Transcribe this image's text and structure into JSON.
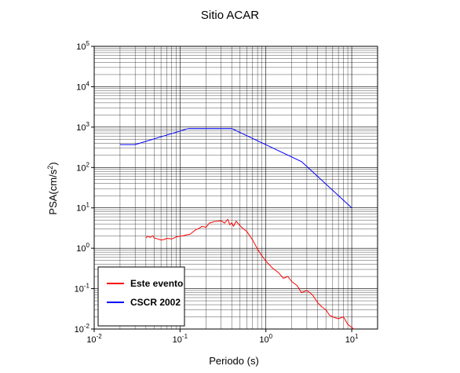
{
  "chart_data": {
    "type": "line",
    "title": "Sitio ACAR",
    "xlabel": "Periodo (s)",
    "ylabel_main": "PSA(cm/s",
    "ylabel_sup": "2",
    "ylabel_close": ")",
    "x_scale": "log",
    "y_scale": "log",
    "xlim": [
      0.01,
      20
    ],
    "ylim": [
      0.01,
      100000
    ],
    "grid": true,
    "legend_position": "bottom-left",
    "x_ticks": [
      {
        "value": 0.01,
        "base": "10",
        "exp": "-2"
      },
      {
        "value": 0.1,
        "base": "10",
        "exp": "-1"
      },
      {
        "value": 1,
        "base": "10",
        "exp": "0"
      },
      {
        "value": 10,
        "base": "10",
        "exp": "1"
      }
    ],
    "y_ticks": [
      {
        "value": 0.01,
        "base": "10",
        "exp": "-2"
      },
      {
        "value": 0.1,
        "base": "10",
        "exp": "-1"
      },
      {
        "value": 1,
        "base": "10",
        "exp": "0"
      },
      {
        "value": 10,
        "base": "10",
        "exp": "1"
      },
      {
        "value": 100,
        "base": "10",
        "exp": "2"
      },
      {
        "value": 1000,
        "base": "10",
        "exp": "3"
      },
      {
        "value": 10000,
        "base": "10",
        "exp": "4"
      },
      {
        "value": 100000,
        "base": "10",
        "exp": "5"
      }
    ],
    "series": [
      {
        "name": "Este evento",
        "color": "#ff0000",
        "x": [
          0.04,
          0.042,
          0.045,
          0.048,
          0.05,
          0.055,
          0.06,
          0.065,
          0.07,
          0.08,
          0.09,
          0.1,
          0.11,
          0.12,
          0.13,
          0.15,
          0.17,
          0.18,
          0.2,
          0.22,
          0.25,
          0.28,
          0.3,
          0.33,
          0.36,
          0.38,
          0.4,
          0.42,
          0.45,
          0.5,
          0.55,
          0.6,
          0.7,
          0.8,
          0.9,
          1.0,
          1.2,
          1.4,
          1.6,
          1.8,
          2.0,
          2.3,
          2.6,
          3.0,
          3.5,
          4.0,
          4.5,
          5.0,
          5.5,
          6.0,
          7.0,
          8.0,
          9.0,
          10.0,
          10.5
        ],
        "y": [
          1.8,
          2.0,
          1.85,
          2.05,
          1.8,
          1.7,
          1.6,
          1.65,
          1.75,
          1.7,
          1.9,
          2.0,
          2.05,
          2.15,
          2.2,
          2.8,
          3.2,
          3.5,
          3.3,
          4.2,
          4.6,
          4.7,
          4.8,
          4.2,
          5.2,
          3.8,
          4.3,
          3.5,
          4.7,
          3.6,
          3.0,
          2.6,
          1.6,
          0.95,
          0.65,
          0.48,
          0.32,
          0.25,
          0.18,
          0.2,
          0.15,
          0.12,
          0.08,
          0.09,
          0.07,
          0.045,
          0.035,
          0.03,
          0.022,
          0.02,
          0.018,
          0.02,
          0.013,
          0.011,
          0.01
        ]
      },
      {
        "name": "CSCR 2002",
        "color": "#0000ff",
        "x": [
          0.02,
          0.03,
          0.125,
          0.4,
          2.6,
          10
        ],
        "y": [
          370,
          370,
          920,
          920,
          140,
          10
        ]
      }
    ]
  }
}
